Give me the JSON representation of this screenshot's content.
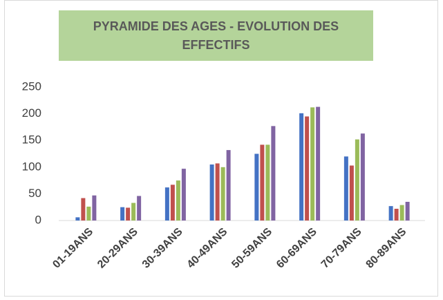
{
  "chart_data": {
    "type": "bar",
    "title": "PYRAMIDE DES AGES - EVOLUTION DES EFFECTIFS",
    "categories": [
      "01-19ANS",
      "20-29ANS",
      "30-39ANS",
      "40-49ANS",
      "50-59ANS",
      "60-69ANS",
      "70-79ANS",
      "80-89ANS"
    ],
    "series": [
      {
        "color": "#4472c4",
        "values": [
          6,
          25,
          62,
          105,
          125,
          201,
          120,
          27
        ]
      },
      {
        "color": "#c0504d",
        "values": [
          42,
          24,
          67,
          107,
          142,
          195,
          103,
          22
        ]
      },
      {
        "color": "#9bbb59",
        "values": [
          26,
          33,
          75,
          100,
          142,
          212,
          152,
          29
        ]
      },
      {
        "color": "#8064a2",
        "values": [
          47,
          46,
          97,
          132,
          177,
          213,
          163,
          35
        ]
      }
    ],
    "ylim": [
      0,
      250
    ],
    "yticks": [
      0,
      50,
      100,
      150,
      200,
      250
    ],
    "grid": false
  }
}
